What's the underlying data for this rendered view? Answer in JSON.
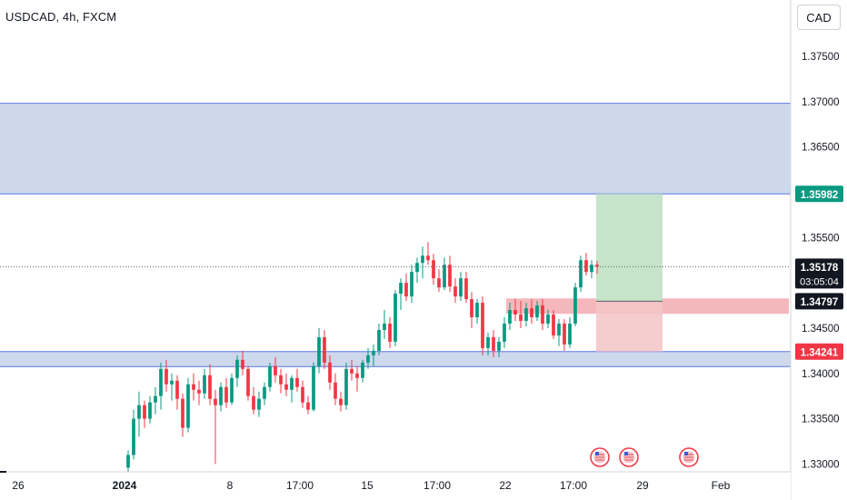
{
  "symbol_title": "USDCAD, 4h, FXCM",
  "currency_label": "CAD",
  "colors": {
    "up": "#089981",
    "down": "#f23645",
    "zone_fill": "#c8d4ea",
    "zone_line": "#5b78e6",
    "target_fill": "#c3e3c6",
    "stop_fill": "#f3c4c6",
    "order_band": "#f0a0a6",
    "target_tag": "#089981",
    "stop_tag": "#f23645",
    "dark_tag": "#131722"
  },
  "chart_data": {
    "type": "candlestick",
    "symbol": "USDCAD",
    "timeframe": "4h",
    "source": "FXCM",
    "ylim": [
      1.3295,
      1.3805
    ],
    "y_ticks": [
      "1.37500",
      "1.37000",
      "1.36500",
      "1.35500",
      "1.34500",
      "1.34000",
      "1.33500",
      "1.33000"
    ],
    "x_ticks": [
      {
        "label": "26",
        "bold": false
      },
      {
        "label": "2024",
        "bold": true
      },
      {
        "label": "8",
        "bold": false
      },
      {
        "label": "17:00",
        "bold": false
      },
      {
        "label": "15",
        "bold": false
      },
      {
        "label": "17:00",
        "bold": false
      },
      {
        "label": "22",
        "bold": false
      },
      {
        "label": "17:00",
        "bold": false
      },
      {
        "label": "29",
        "bold": false
      },
      {
        "label": "Feb",
        "bold": false
      }
    ],
    "zones": [
      {
        "low": 1.35982,
        "high": 1.36982
      },
      {
        "low": 1.34075,
        "high": 1.34241
      }
    ],
    "position": {
      "side": "long",
      "entry": 1.34797,
      "target": 1.35982,
      "stop": 1.34241
    },
    "order_band": [
      1.34658,
      1.34828
    ],
    "current_price": "1.35178",
    "current_value": 1.35178,
    "countdown": "03:05:04",
    "price_tags": [
      {
        "label": "1.35982",
        "kind": "target"
      },
      {
        "label": "1.35178",
        "kind": "current"
      },
      {
        "label": "1.34797",
        "kind": "entry"
      },
      {
        "label": "1.34241",
        "kind": "stop"
      }
    ],
    "event_markers": 3,
    "candles": [
      [
        1.3296,
        1.3315,
        1.329,
        1.331
      ],
      [
        1.331,
        1.336,
        1.3305,
        1.335
      ],
      [
        1.335,
        1.338,
        1.333,
        1.3365
      ],
      [
        1.3365,
        1.337,
        1.334,
        1.335
      ],
      [
        1.335,
        1.3375,
        1.3345,
        1.3368
      ],
      [
        1.3368,
        1.3385,
        1.3355,
        1.3375
      ],
      [
        1.3375,
        1.3412,
        1.336,
        1.3405
      ],
      [
        1.3405,
        1.3415,
        1.338,
        1.3388
      ],
      [
        1.3388,
        1.34,
        1.337,
        1.3392
      ],
      [
        1.3392,
        1.3398,
        1.336,
        1.3372
      ],
      [
        1.3372,
        1.3378,
        1.333,
        1.334
      ],
      [
        1.334,
        1.3395,
        1.3335,
        1.3388
      ],
      [
        1.3388,
        1.34,
        1.337,
        1.3382
      ],
      [
        1.3382,
        1.3392,
        1.3365,
        1.3378
      ],
      [
        1.3378,
        1.3405,
        1.3372,
        1.3398
      ],
      [
        1.3398,
        1.341,
        1.3365,
        1.3372
      ],
      [
        1.3372,
        1.3382,
        1.33,
        1.3365
      ],
      [
        1.3365,
        1.339,
        1.3358,
        1.3385
      ],
      [
        1.3385,
        1.3395,
        1.3362,
        1.3368
      ],
      [
        1.3368,
        1.34,
        1.3365,
        1.3395
      ],
      [
        1.3395,
        1.342,
        1.3385,
        1.3415
      ],
      [
        1.3415,
        1.3425,
        1.3398,
        1.3405
      ],
      [
        1.3405,
        1.3408,
        1.337,
        1.3375
      ],
      [
        1.3375,
        1.3385,
        1.3355,
        1.336
      ],
      [
        1.336,
        1.338,
        1.3352,
        1.3372
      ],
      [
        1.3372,
        1.339,
        1.3365,
        1.3385
      ],
      [
        1.3385,
        1.3412,
        1.338,
        1.3408
      ],
      [
        1.3408,
        1.3418,
        1.339,
        1.3398
      ],
      [
        1.3398,
        1.3405,
        1.3378,
        1.3388
      ],
      [
        1.3388,
        1.34,
        1.3375,
        1.3382
      ],
      [
        1.3382,
        1.3398,
        1.3368,
        1.3395
      ],
      [
        1.3395,
        1.3405,
        1.338,
        1.3385
      ],
      [
        1.3385,
        1.3392,
        1.3362,
        1.3368
      ],
      [
        1.3368,
        1.3375,
        1.3355,
        1.336
      ],
      [
        1.336,
        1.3412,
        1.3358,
        1.3408
      ],
      [
        1.3408,
        1.345,
        1.34,
        1.344
      ],
      [
        1.344,
        1.3448,
        1.3405,
        1.3412
      ],
      [
        1.3412,
        1.342,
        1.3382,
        1.339
      ],
      [
        1.339,
        1.34,
        1.3365,
        1.3372
      ],
      [
        1.3372,
        1.338,
        1.3358,
        1.3365
      ],
      [
        1.3365,
        1.3412,
        1.336,
        1.3405
      ],
      [
        1.3405,
        1.3415,
        1.3392,
        1.34
      ],
      [
        1.34,
        1.3408,
        1.338,
        1.3395
      ],
      [
        1.3395,
        1.3415,
        1.339,
        1.3412
      ],
      [
        1.3412,
        1.3428,
        1.3405,
        1.342
      ],
      [
        1.342,
        1.3432,
        1.3408,
        1.3425
      ],
      [
        1.3425,
        1.3455,
        1.342,
        1.3448
      ],
      [
        1.3448,
        1.347,
        1.3438,
        1.3455
      ],
      [
        1.3455,
        1.3462,
        1.3428,
        1.3435
      ],
      [
        1.3435,
        1.3492,
        1.343,
        1.3488
      ],
      [
        1.3488,
        1.3505,
        1.347,
        1.35
      ],
      [
        1.35,
        1.351,
        1.348,
        1.3485
      ],
      [
        1.3485,
        1.352,
        1.3478,
        1.3512
      ],
      [
        1.3512,
        1.3528,
        1.35,
        1.3522
      ],
      [
        1.3522,
        1.354,
        1.3505,
        1.353
      ],
      [
        1.353,
        1.3545,
        1.352,
        1.3525
      ],
      [
        1.3525,
        1.3532,
        1.3498,
        1.3505
      ],
      [
        1.3505,
        1.3515,
        1.349,
        1.3495
      ],
      [
        1.3495,
        1.3528,
        1.3492,
        1.352
      ],
      [
        1.352,
        1.353,
        1.349,
        1.3496
      ],
      [
        1.3496,
        1.3505,
        1.3478,
        1.3485
      ],
      [
        1.3485,
        1.3512,
        1.348,
        1.3505
      ],
      [
        1.3505,
        1.3512,
        1.3478,
        1.3482
      ],
      [
        1.3482,
        1.349,
        1.345,
        1.3462
      ],
      [
        1.3462,
        1.3482,
        1.3455,
        1.3478
      ],
      [
        1.3478,
        1.3485,
        1.342,
        1.3428
      ],
      [
        1.3428,
        1.3445,
        1.342,
        1.344
      ],
      [
        1.344,
        1.3448,
        1.3418,
        1.3425
      ],
      [
        1.3425,
        1.344,
        1.3418,
        1.3435
      ],
      [
        1.3435,
        1.3462,
        1.3428,
        1.3455
      ],
      [
        1.3455,
        1.3478,
        1.3448,
        1.347
      ],
      [
        1.347,
        1.3482,
        1.3458,
        1.3465
      ],
      [
        1.3465,
        1.348,
        1.345,
        1.3458
      ],
      [
        1.3458,
        1.3478,
        1.3452,
        1.3472
      ],
      [
        1.3472,
        1.3482,
        1.3455,
        1.3462
      ],
      [
        1.3462,
        1.348,
        1.3458,
        1.3475
      ],
      [
        1.3475,
        1.3482,
        1.3448,
        1.3455
      ],
      [
        1.3455,
        1.347,
        1.345,
        1.3465
      ],
      [
        1.3465,
        1.347,
        1.3438,
        1.3442
      ],
      [
        1.3442,
        1.346,
        1.343,
        1.3455
      ],
      [
        1.3455,
        1.346,
        1.3425,
        1.3432
      ],
      [
        1.3432,
        1.3462,
        1.3428,
        1.3455
      ],
      [
        1.3455,
        1.35,
        1.3452,
        1.3495
      ],
      [
        1.3495,
        1.353,
        1.349,
        1.3525
      ],
      [
        1.3525,
        1.3533,
        1.3508,
        1.3512
      ],
      [
        1.3512,
        1.3525,
        1.3505,
        1.352
      ],
      [
        1.352,
        1.3524,
        1.351,
        1.3518
      ]
    ]
  }
}
